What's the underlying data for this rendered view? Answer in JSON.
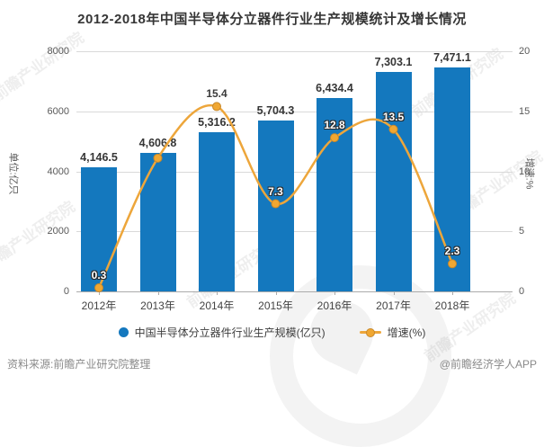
{
  "title": "2012-2018年中国半导体分立器件行业生产规模统计及增长情况",
  "chart_data": {
    "type": "bar+line",
    "categories": [
      "2012年",
      "2013年",
      "2014年",
      "2015年",
      "2016年",
      "2017年",
      "2018年"
    ],
    "series": [
      {
        "name": "中国半导体分立器件行业生产规模(亿只)",
        "type": "bar",
        "values": [
          4146.5,
          4606.8,
          5316.2,
          5704.3,
          6434.4,
          7303.1,
          7471.1
        ],
        "labels": [
          "4,146.5",
          "4,606.8",
          "5,316.2",
          "5,704.3",
          "6,434.4",
          "7,303.1",
          "7,471.1"
        ],
        "color": "#1478be"
      },
      {
        "name": "增速(%)",
        "type": "line",
        "values": [
          0.3,
          11.1,
          15.4,
          7.3,
          12.8,
          13.5,
          2.3
        ],
        "labels": [
          "0.3",
          null,
          "15.4",
          "7.3",
          "12.8",
          "13.5",
          "2.3"
        ],
        "color": "#eda63b",
        "marker_fill": "#f0a732",
        "marker_stroke": "#c8882a"
      }
    ],
    "left_axis": {
      "label": "单位:亿只",
      "ticks": [
        0,
        2000,
        4000,
        6000,
        8000
      ],
      "max": 8000
    },
    "right_axis": {
      "label": "增速:%",
      "ticks": [
        0,
        5,
        10,
        15,
        20
      ],
      "max": 20
    },
    "grid": true,
    "legend_position": "bottom"
  },
  "watermark": {
    "text": "前瞻产业研究院"
  },
  "footer": {
    "source": "资料来源:前瞻产业研究院整理",
    "credit": "@前瞻经济学人APP"
  }
}
